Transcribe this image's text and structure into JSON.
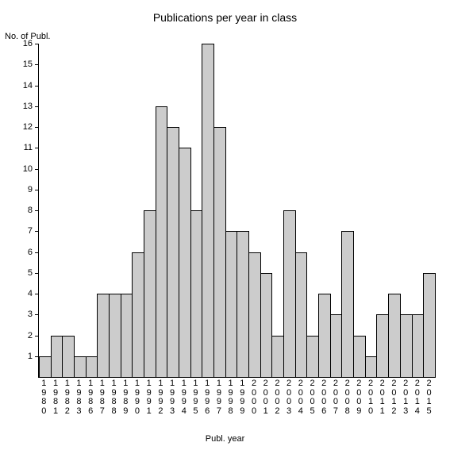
{
  "chart": {
    "type": "bar",
    "title": "Publications per year in class",
    "title_fontsize": 14,
    "ylabel": "No. of Publ.",
    "xlabel": "Publ. year",
    "label_fontsize": 11,
    "background_color": "#ffffff",
    "bar_fill_color": "#cccccc",
    "bar_border_color": "#000000",
    "axis_color": "#000000",
    "text_color": "#000000",
    "tick_fontsize": 11,
    "ylim": [
      0,
      16
    ],
    "ytick_step": 1,
    "yticks": [
      1,
      2,
      3,
      4,
      5,
      6,
      7,
      8,
      9,
      10,
      11,
      12,
      13,
      14,
      15,
      16
    ],
    "categories": [
      "1980",
      "1981",
      "1982",
      "1983",
      "1986",
      "1987",
      "1988",
      "1989",
      "1990",
      "1991",
      "1992",
      "1993",
      "1994",
      "1995",
      "1996",
      "1997",
      "1998",
      "1999",
      "2000",
      "2001",
      "2002",
      "2003",
      "2004",
      "2005",
      "2006",
      "2007",
      "2008",
      "2009",
      "2010",
      "2011",
      "2012",
      "2013",
      "2014",
      "2015"
    ],
    "values": [
      1,
      2,
      2,
      1,
      1,
      4,
      4,
      4,
      6,
      8,
      13,
      12,
      11,
      8,
      16,
      12,
      7,
      7,
      6,
      5,
      2,
      8,
      6,
      2,
      4,
      3,
      7,
      2,
      1,
      3,
      4,
      3,
      3,
      5
    ],
    "bar_width": 1.0
  }
}
